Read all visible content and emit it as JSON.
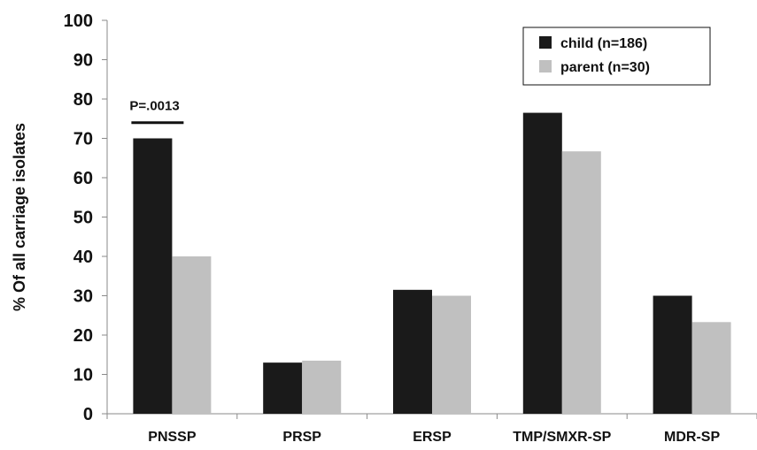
{
  "chart_data": {
    "type": "bar",
    "title": "",
    "xlabel": "",
    "ylabel": "% Of  all carriage isolates",
    "ylim": [
      0,
      100
    ],
    "yticks": [
      0,
      10,
      20,
      30,
      40,
      50,
      60,
      70,
      80,
      90,
      100
    ],
    "grid": false,
    "legend_position": "top-right",
    "categories": [
      "PNSSP",
      "PRSP",
      "ERSP",
      "TMP/SMXR-SP",
      "MDR-SP"
    ],
    "series": [
      {
        "name": "child (n=186)",
        "color": "#1a1a1a",
        "values": [
          70,
          13,
          31.5,
          76.5,
          30
        ]
      },
      {
        "name": "parent (n=30)",
        "color": "#c0c0c0",
        "values": [
          40,
          13.5,
          30,
          66.7,
          23.3
        ]
      }
    ],
    "annotations": [
      {
        "text": "P=.0013",
        "category": "PNSSP",
        "series": "child (n=186)",
        "y": 74
      }
    ]
  }
}
